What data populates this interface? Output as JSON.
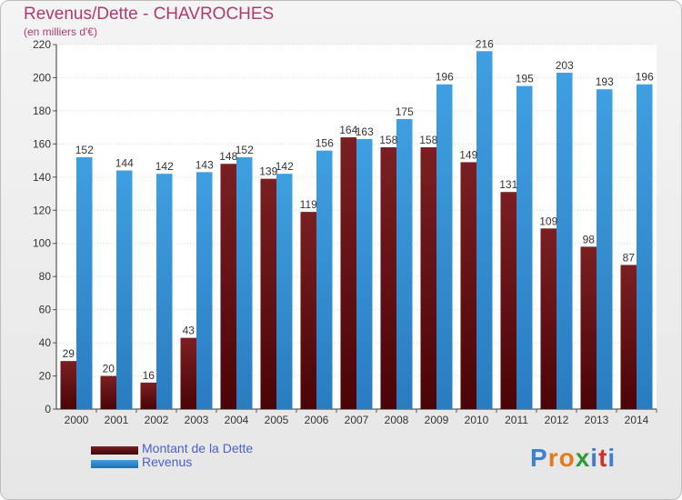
{
  "title": "Revenus/Dette - CHAVROCHES",
  "subtitle": "(en milliers d'€)",
  "colors": {
    "title": "#b03a6e",
    "dette": "#7a1f22",
    "revenus": "#3f9fe0",
    "legend_text": "#4a60d0"
  },
  "legend": {
    "dette_label": "Montant de la Dette",
    "revenus_label": "Revenus"
  },
  "logo": {
    "text": "Proxiti",
    "letter_colors": [
      "#3f7fd0",
      "#e37a1f",
      "#e37a1f",
      "#2f9a3a",
      "#3f7fd0",
      "#d02f2f",
      "#3f7fd0"
    ]
  },
  "chart_data": {
    "type": "bar",
    "categories": [
      "2000",
      "2001",
      "2002",
      "2003",
      "2004",
      "2005",
      "2006",
      "2007",
      "2008",
      "2009",
      "2010",
      "2011",
      "2012",
      "2013",
      "2014"
    ],
    "series": [
      {
        "name": "Montant de la Dette",
        "values": [
          29,
          20,
          16,
          43,
          148,
          139,
          119,
          164,
          158,
          158,
          149,
          131,
          109,
          98,
          87
        ]
      },
      {
        "name": "Revenus",
        "values": [
          152,
          144,
          142,
          143,
          152,
          142,
          156,
          163,
          175,
          196,
          216,
          195,
          203,
          193,
          196
        ]
      }
    ],
    "title": "Revenus/Dette - CHAVROCHES",
    "ylabel": "(en milliers d'€)",
    "ylim": [
      0,
      220
    ],
    "yticks": [
      0,
      20,
      40,
      60,
      80,
      100,
      120,
      140,
      160,
      180,
      200,
      220
    ],
    "grid": true,
    "legend_position": "bottom-left"
  }
}
